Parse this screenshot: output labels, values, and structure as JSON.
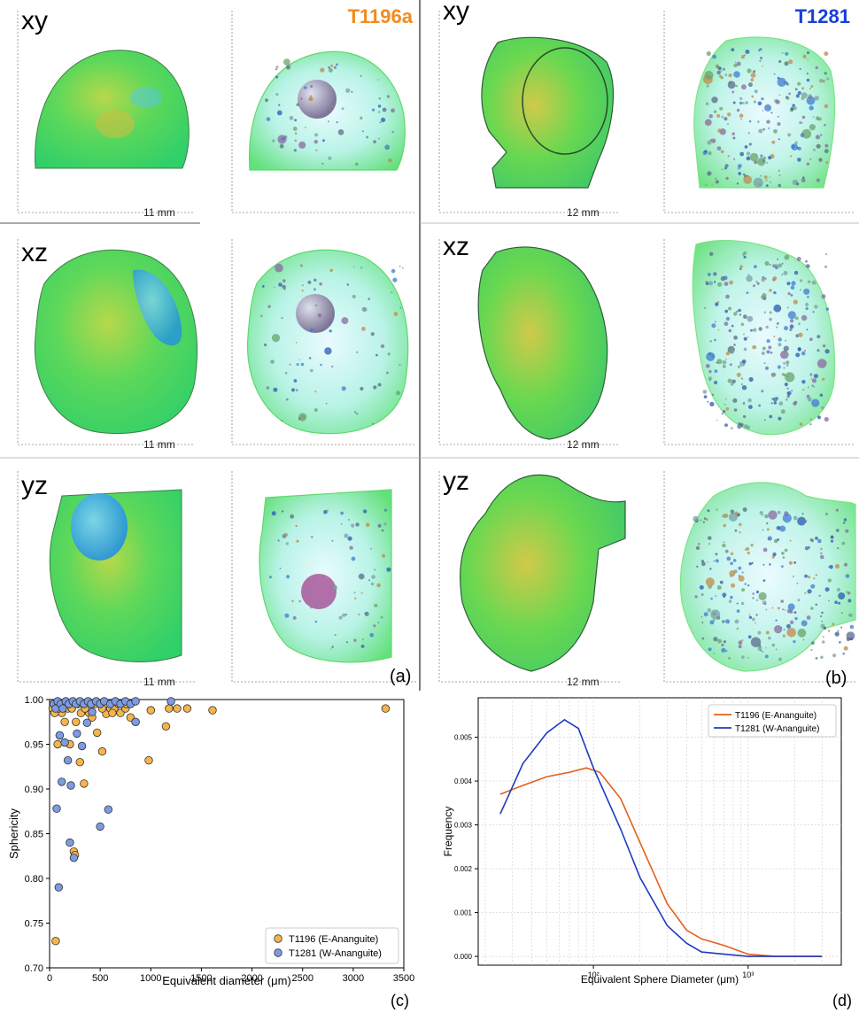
{
  "panel_a": {
    "sample": "T1196a",
    "sample_color": "#f28a1e",
    "letter": "(a)",
    "rows": [
      {
        "view": "xy",
        "scale": "11 mm"
      },
      {
        "view": "xz",
        "scale": "11 mm"
      },
      {
        "view": "yz",
        "scale": "11 mm"
      }
    ]
  },
  "panel_b": {
    "sample": "T1281",
    "sample_color": "#1a3fd8",
    "letter": "(b)",
    "rows": [
      {
        "view": "xy",
        "scale": "12 mm"
      },
      {
        "view": "xz",
        "scale": "12 mm"
      },
      {
        "view": "yz",
        "scale": "12 mm"
      }
    ]
  },
  "chart_data": [
    {
      "type": "scatter",
      "panel": "(c)",
      "xlabel": "Equivalent diameter (μm)",
      "ylabel": "Sphericity",
      "xlim": [
        0,
        3500
      ],
      "ylim": [
        0.7,
        1.0
      ],
      "xticks": [
        "0",
        "500",
        "1000",
        "1500",
        "2000",
        "2500",
        "3000",
        "3500"
      ],
      "yticks": [
        "0.70",
        "0.75",
        "0.80",
        "0.85",
        "0.90",
        "0.95",
        "1.00"
      ],
      "legend_position": "bottom-right",
      "series": [
        {
          "name": "T1196 (E-Ananguite)",
          "color": "#f5b54a",
          "points": [
            [
              60,
              0.73
            ],
            [
              150,
              0.975
            ],
            [
              240,
              0.83
            ],
            [
              250,
              0.826
            ],
            [
              260,
              0.975
            ],
            [
              300,
              0.93
            ],
            [
              310,
              0.985
            ],
            [
              340,
              0.906
            ],
            [
              390,
              0.985
            ],
            [
              420,
              0.98
            ],
            [
              470,
              0.963
            ],
            [
              520,
              0.942
            ],
            [
              560,
              0.984
            ],
            [
              600,
              0.99
            ],
            [
              640,
              0.99
            ],
            [
              700,
              0.985
            ],
            [
              750,
              0.99
            ],
            [
              800,
              0.98
            ],
            [
              850,
              0.975
            ],
            [
              980,
              0.932
            ],
            [
              1000,
              0.988
            ],
            [
              1150,
              0.97
            ],
            [
              1180,
              0.99
            ],
            [
              1260,
              0.99
            ],
            [
              1360,
              0.99
            ],
            [
              1610,
              0.988
            ],
            [
              3320,
              0.99
            ],
            [
              80,
              0.95
            ],
            [
              100,
              0.96
            ],
            [
              120,
              0.985
            ],
            [
              180,
              0.99
            ],
            [
              200,
              0.95
            ],
            [
              30,
              0.99
            ],
            [
              50,
              0.985
            ],
            [
              90,
              0.99
            ],
            [
              140,
              0.995
            ],
            [
              220,
              0.99
            ],
            [
              280,
              0.995
            ],
            [
              350,
              0.99
            ],
            [
              450,
              0.995
            ],
            [
              520,
              0.99
            ],
            [
              620,
              0.985
            ],
            [
              680,
              0.995
            ],
            [
              760,
              0.995
            ]
          ]
        },
        {
          "name": "T1281 (W-Ananguite)",
          "color": "#7d9ae4",
          "points": [
            [
              70,
              0.878
            ],
            [
              90,
              0.79
            ],
            [
              100,
              0.96
            ],
            [
              120,
              0.908
            ],
            [
              150,
              0.952
            ],
            [
              180,
              0.932
            ],
            [
              200,
              0.84
            ],
            [
              210,
              0.904
            ],
            [
              240,
              0.823
            ],
            [
              270,
              0.962
            ],
            [
              320,
              0.948
            ],
            [
              370,
              0.974
            ],
            [
              420,
              0.986
            ],
            [
              500,
              0.858
            ],
            [
              580,
              0.877
            ],
            [
              850,
              0.975
            ],
            [
              1200,
              0.998
            ],
            [
              40,
              0.995
            ],
            [
              60,
              0.99
            ],
            [
              80,
              0.998
            ],
            [
              110,
              0.995
            ],
            [
              130,
              0.99
            ],
            [
              160,
              0.998
            ],
            [
              190,
              0.995
            ],
            [
              230,
              0.998
            ],
            [
              260,
              0.995
            ],
            [
              300,
              0.998
            ],
            [
              340,
              0.995
            ],
            [
              380,
              0.998
            ],
            [
              410,
              0.995
            ],
            [
              460,
              0.998
            ],
            [
              500,
              0.995
            ],
            [
              540,
              0.998
            ],
            [
              600,
              0.995
            ],
            [
              650,
              0.998
            ],
            [
              700,
              0.995
            ],
            [
              750,
              0.998
            ],
            [
              800,
              0.995
            ],
            [
              850,
              0.998
            ]
          ]
        }
      ]
    },
    {
      "type": "line",
      "panel": "(d)",
      "xlabel": "Equivalent Sphere Diameter (μm)",
      "ylabel": "Frequency",
      "xscale": "log",
      "xlim": [
        18,
        4000
      ],
      "ylim": [
        -0.0002,
        0.0059
      ],
      "xticks": [
        "10²",
        "10³"
      ],
      "yticks": [
        "0.000",
        "0.001",
        "0.002",
        "0.003",
        "0.004",
        "0.005"
      ],
      "grid": true,
      "legend_position": "top-right",
      "series": [
        {
          "name": "T1196 (E-Ananguite)",
          "color": "#e2611e",
          "points": [
            [
              25,
              0.0037
            ],
            [
              35,
              0.0039
            ],
            [
              50,
              0.0041
            ],
            [
              70,
              0.0042
            ],
            [
              90,
              0.0043
            ],
            [
              110,
              0.0042
            ],
            [
              150,
              0.0036
            ],
            [
              200,
              0.0026
            ],
            [
              300,
              0.0012
            ],
            [
              400,
              0.0006
            ],
            [
              500,
              0.0004
            ],
            [
              700,
              0.00025
            ],
            [
              1000,
              5e-05
            ],
            [
              1500,
              0.0
            ],
            [
              3000,
              0.0
            ]
          ]
        },
        {
          "name": "T1281 (W-Ananguite)",
          "color": "#1e3bbf",
          "points": [
            [
              25,
              0.00325
            ],
            [
              35,
              0.0044
            ],
            [
              50,
              0.0051
            ],
            [
              65,
              0.0054
            ],
            [
              80,
              0.0052
            ],
            [
              100,
              0.0043
            ],
            [
              150,
              0.0029
            ],
            [
              200,
              0.0018
            ],
            [
              300,
              0.0007
            ],
            [
              400,
              0.0003
            ],
            [
              500,
              0.0001
            ],
            [
              700,
              5e-05
            ],
            [
              1000,
              0.0
            ],
            [
              3000,
              0.0
            ]
          ]
        }
      ]
    }
  ]
}
